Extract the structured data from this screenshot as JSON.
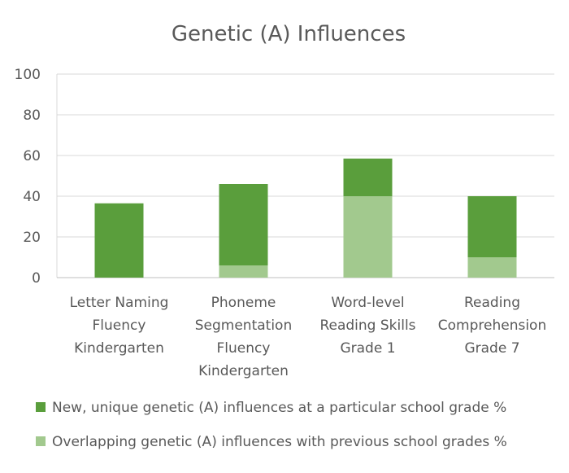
{
  "chart_data": {
    "type": "bar",
    "stacked": true,
    "title": "Genetic (A) Influences",
    "xlabel": "",
    "ylabel": "",
    "ylim": [
      0,
      100
    ],
    "yticks": [
      0,
      20,
      40,
      60,
      80,
      100
    ],
    "grid": true,
    "legend_position": "bottom",
    "categories": [
      [
        "Letter Naming",
        "Fluency",
        "Kindergarten"
      ],
      [
        "Phoneme",
        "Segmentation",
        "Fluency",
        "Kindergarten"
      ],
      [
        "Word-level",
        "Reading Skills",
        "Grade 1"
      ],
      [
        "Reading",
        "Comprehension",
        "Grade 7"
      ]
    ],
    "series": [
      {
        "name": "Overlapping genetic (A) influences with previous school grades %",
        "color": "#a2c98e",
        "values": [
          0,
          6,
          40,
          10
        ]
      },
      {
        "name": "New, unique genetic (A) influences at a particular school grade %",
        "color": "#5a9e3c",
        "values": [
          36.5,
          40,
          18.5,
          30
        ]
      }
    ],
    "legend_order": [
      1,
      0
    ]
  }
}
